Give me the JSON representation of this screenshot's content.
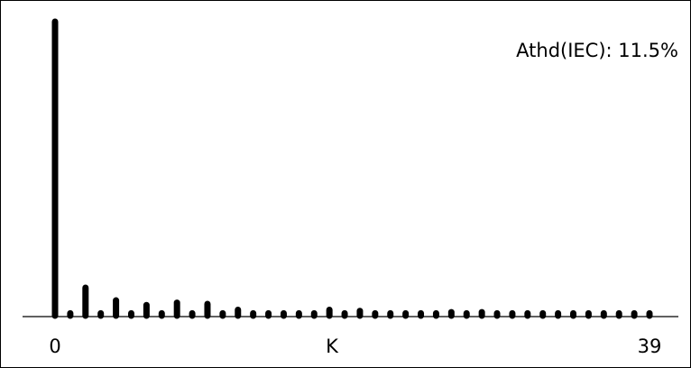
{
  "chart_data": {
    "type": "bar",
    "annotation": "Athd(IEC): 11.5%",
    "xlabel": "K",
    "x_tick_labels": [
      "0",
      "39"
    ],
    "xlim": [
      0,
      39
    ],
    "ylim": [
      0,
      100
    ],
    "grid": false,
    "bar_color": "#000000",
    "harmonics": [
      {
        "k": 0,
        "value": 100
      },
      {
        "k": 1,
        "value": 0.8
      },
      {
        "k": 2,
        "value": 9.5
      },
      {
        "k": 3,
        "value": 0.8
      },
      {
        "k": 4,
        "value": 5.2
      },
      {
        "k": 5,
        "value": 0.8
      },
      {
        "k": 6,
        "value": 3.6
      },
      {
        "k": 7,
        "value": 0.8
      },
      {
        "k": 8,
        "value": 4.4
      },
      {
        "k": 9,
        "value": 0.8
      },
      {
        "k": 10,
        "value": 4.0
      },
      {
        "k": 11,
        "value": 0.8
      },
      {
        "k": 12,
        "value": 2.0
      },
      {
        "k": 13,
        "value": 0.8
      },
      {
        "k": 14,
        "value": 0.8
      },
      {
        "k": 15,
        "value": 0.8
      },
      {
        "k": 16,
        "value": 0.8
      },
      {
        "k": 17,
        "value": 0.8
      },
      {
        "k": 18,
        "value": 2.0
      },
      {
        "k": 19,
        "value": 0.8
      },
      {
        "k": 20,
        "value": 1.6
      },
      {
        "k": 21,
        "value": 0.8
      },
      {
        "k": 22,
        "value": 0.8
      },
      {
        "k": 23,
        "value": 0.8
      },
      {
        "k": 24,
        "value": 0.8
      },
      {
        "k": 25,
        "value": 0.8
      },
      {
        "k": 26,
        "value": 1.2
      },
      {
        "k": 27,
        "value": 0.8
      },
      {
        "k": 28,
        "value": 1.2
      },
      {
        "k": 29,
        "value": 0.8
      },
      {
        "k": 30,
        "value": 0.8
      },
      {
        "k": 31,
        "value": 0.8
      },
      {
        "k": 32,
        "value": 0.8
      },
      {
        "k": 33,
        "value": 0.8
      },
      {
        "k": 34,
        "value": 0.8
      },
      {
        "k": 35,
        "value": 0.8
      },
      {
        "k": 36,
        "value": 0.8
      },
      {
        "k": 37,
        "value": 0.8
      },
      {
        "k": 38,
        "value": 0.8
      },
      {
        "k": 39,
        "value": 0.8
      }
    ]
  }
}
